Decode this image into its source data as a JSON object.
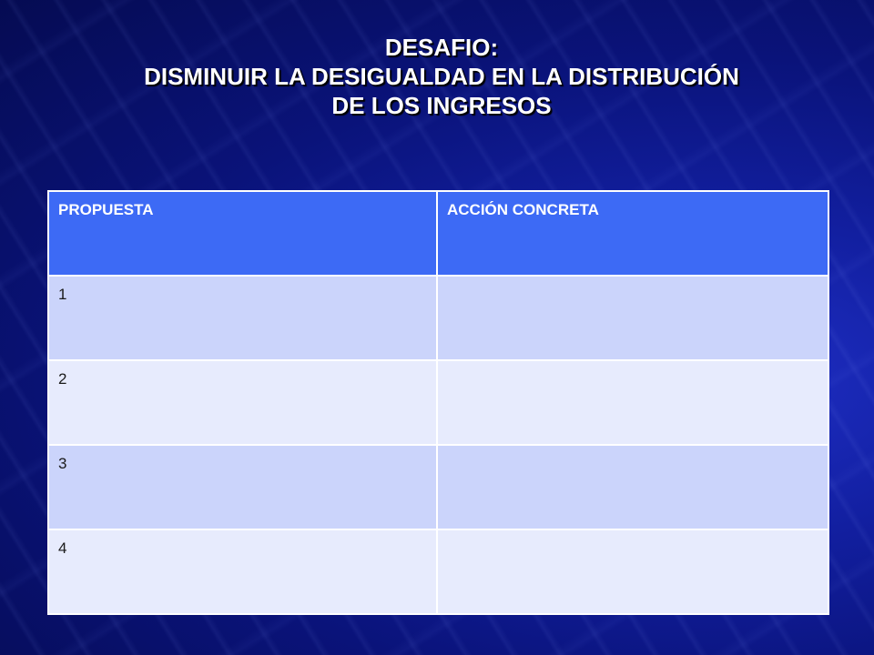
{
  "title": {
    "line1": "DESAFIO:",
    "line2": "DISMINUIR  LA DESIGUALDAD EN LA DISTRIBUCIÓN",
    "line3": "DE LOS INGRESOS"
  },
  "table": {
    "headers": [
      "PROPUESTA",
      "ACCIÓN CONCRETA"
    ],
    "rows": [
      [
        "1",
        ""
      ],
      [
        "2",
        ""
      ],
      [
        "3",
        ""
      ],
      [
        "4",
        ""
      ]
    ]
  },
  "colors": {
    "header_bg": "#3d6af5",
    "row_odd_bg": "#cbd4fb",
    "row_even_bg": "#e7ebfd",
    "background": "#0a137a"
  }
}
